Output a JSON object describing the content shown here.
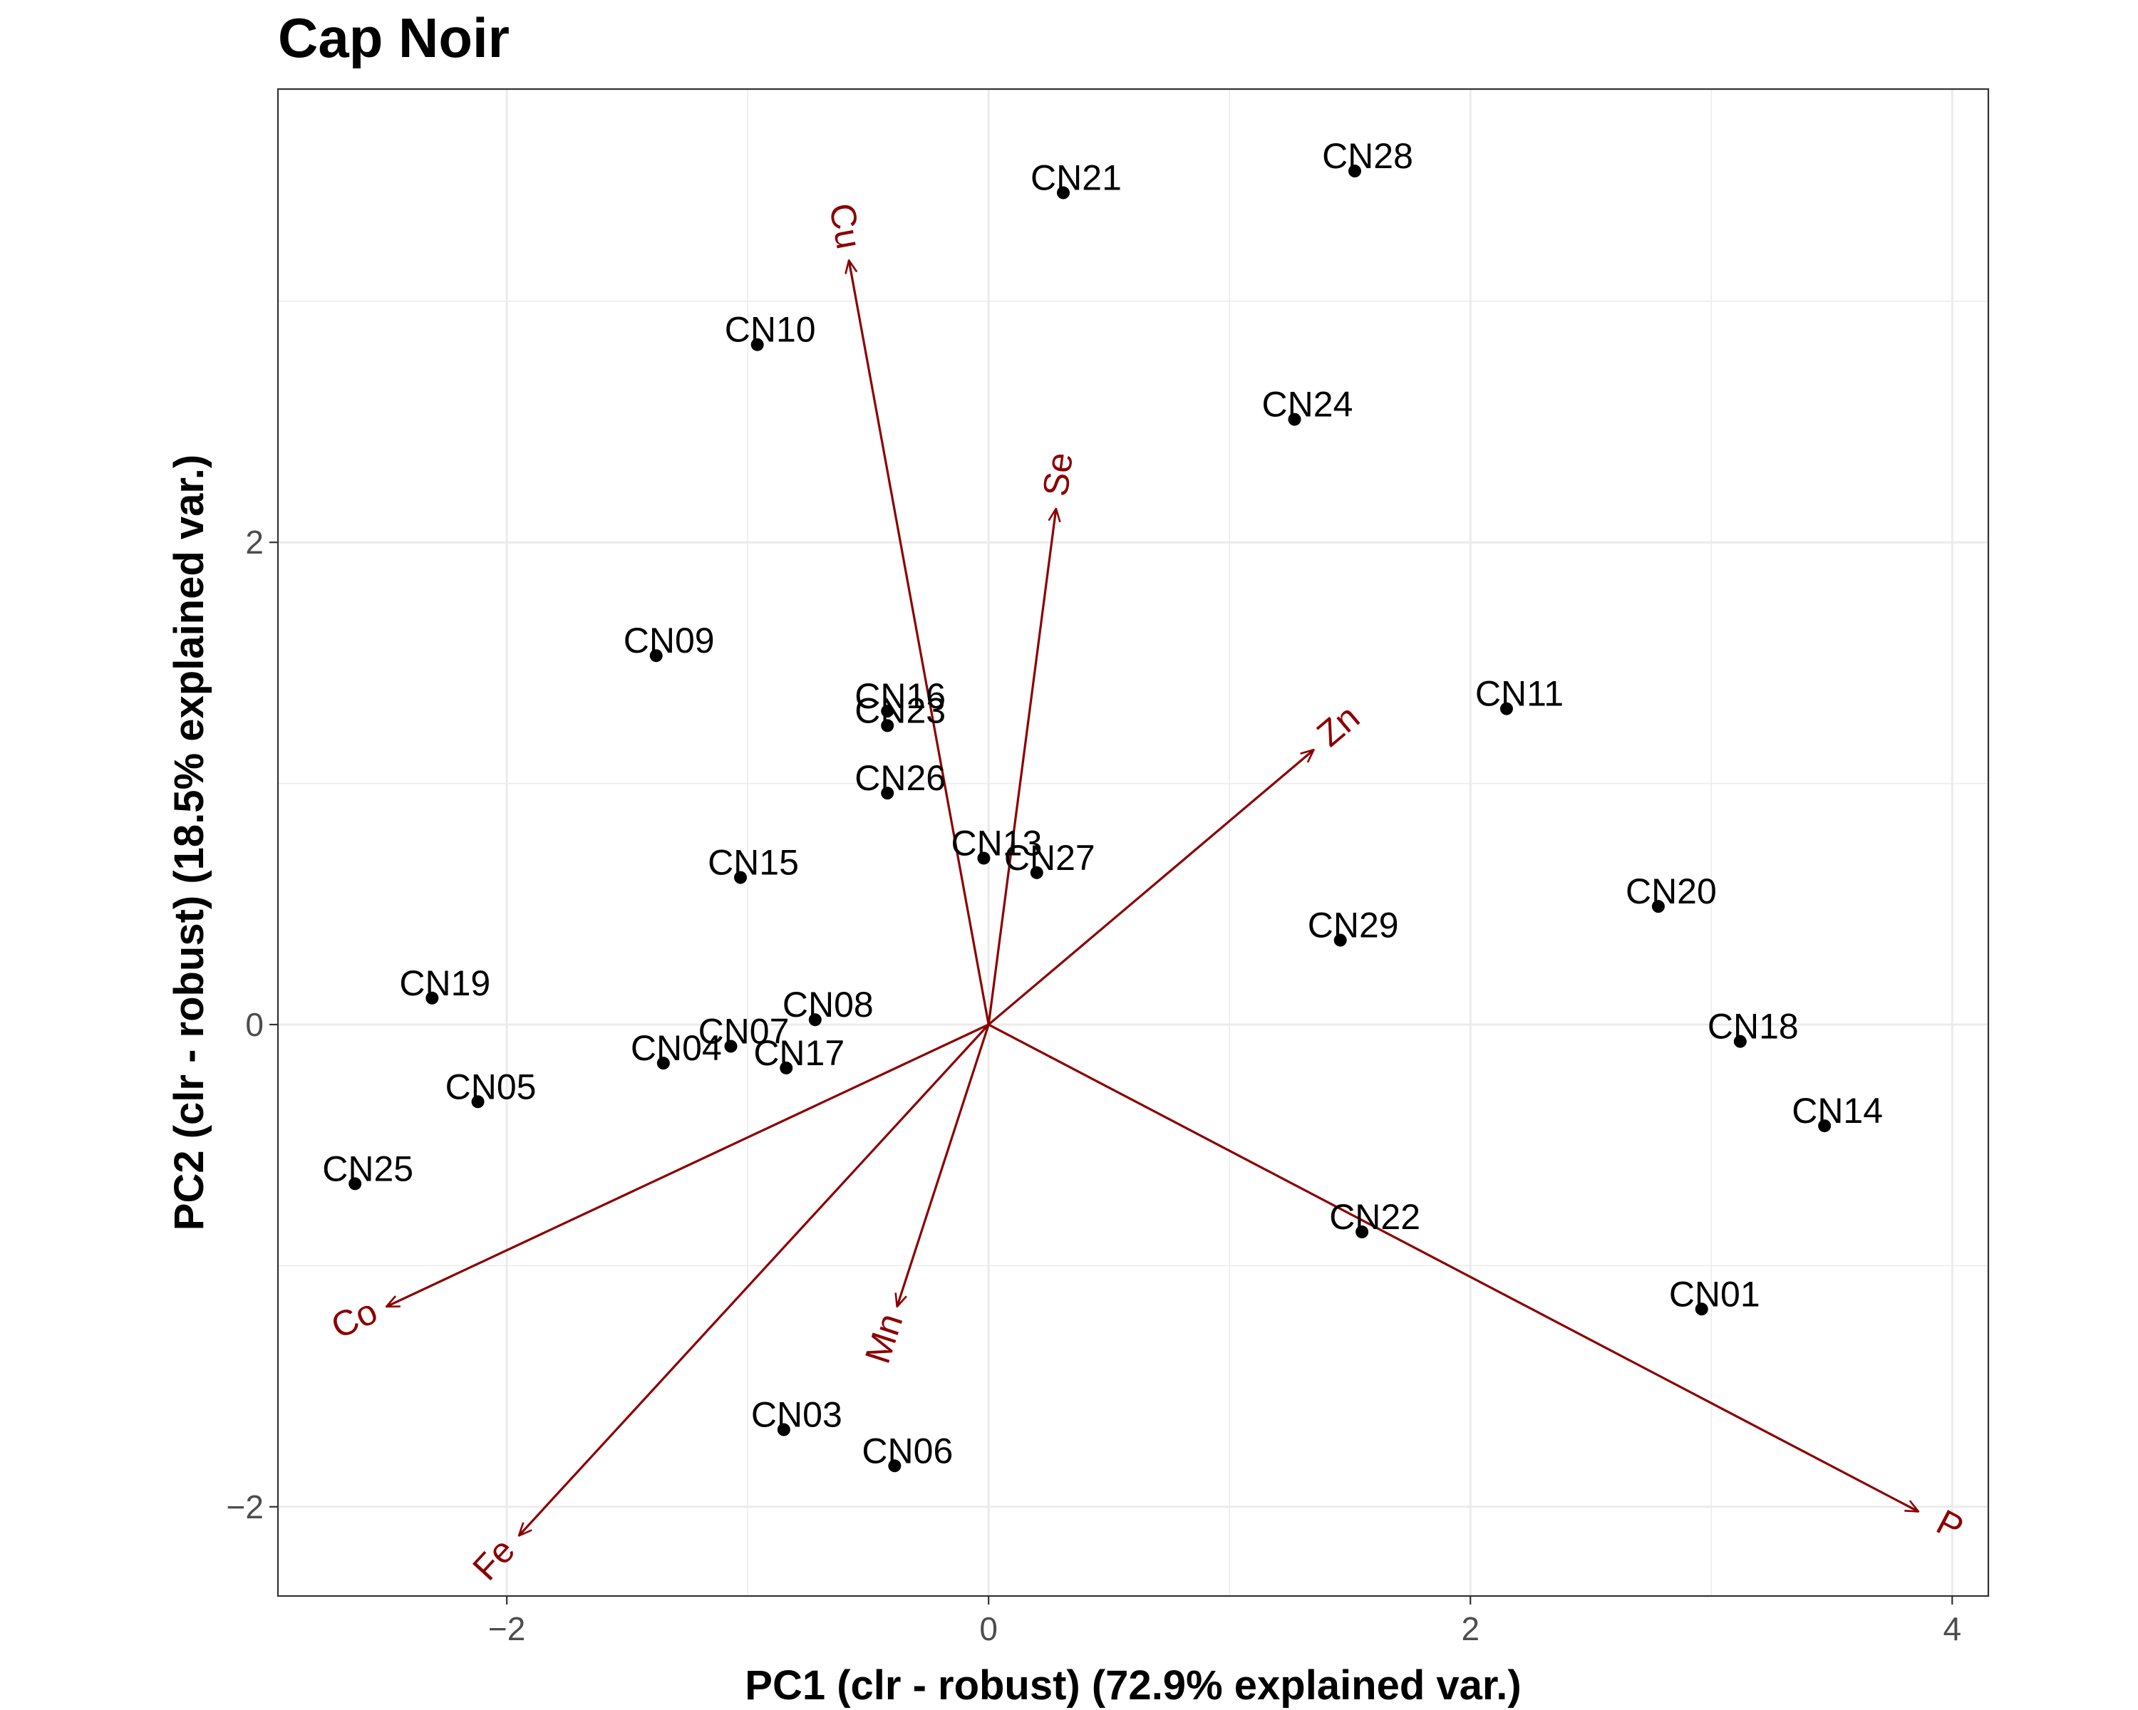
{
  "chart_data": {
    "type": "scatter",
    "title": "Cap Noir",
    "xlabel": "PC1 (clr - robust) (72.9% explained var.)",
    "ylabel": "PC2 (clr - robust) (18.5% explained var.)",
    "xlim": [
      -2.95,
      4.15
    ],
    "ylim": [
      -2.37,
      3.88
    ],
    "xticks": [
      -2,
      0,
      2,
      4
    ],
    "yticks": [
      -2,
      0,
      2
    ],
    "grid": true,
    "point_color": "#000000",
    "vector_color": "#8b0000",
    "points": [
      {
        "label": "CN01",
        "x": 2.96,
        "y": -1.18
      },
      {
        "label": "CN03",
        "x": -0.85,
        "y": -1.68
      },
      {
        "label": "CN04",
        "x": -1.35,
        "y": -0.16
      },
      {
        "label": "CN05",
        "x": -2.12,
        "y": -0.32
      },
      {
        "label": "CN06",
        "x": -0.39,
        "y": -1.83
      },
      {
        "label": "CN07",
        "x": -1.07,
        "y": -0.09
      },
      {
        "label": "CN08",
        "x": -0.72,
        "y": 0.02
      },
      {
        "label": "CN09",
        "x": -1.38,
        "y": 1.53
      },
      {
        "label": "CN10",
        "x": -0.96,
        "y": 2.82
      },
      {
        "label": "CN11",
        "x": 2.15,
        "y": 1.31
      },
      {
        "label": "CN13",
        "x": -0.02,
        "y": 0.69
      },
      {
        "label": "CN14",
        "x": 3.47,
        "y": -0.42
      },
      {
        "label": "CN15",
        "x": -1.03,
        "y": 0.61
      },
      {
        "label": "CN16",
        "x": -0.42,
        "y": 1.3
      },
      {
        "label": "CN17",
        "x": -0.84,
        "y": -0.18
      },
      {
        "label": "CN18",
        "x": 3.12,
        "y": -0.07
      },
      {
        "label": "CN19",
        "x": -2.31,
        "y": 0.11
      },
      {
        "label": "CN20",
        "x": 2.78,
        "y": 0.49
      },
      {
        "label": "CN21",
        "x": 0.31,
        "y": 3.45
      },
      {
        "label": "CN22",
        "x": 1.55,
        "y": -0.86
      },
      {
        "label": "CN23",
        "x": -0.42,
        "y": 1.24
      },
      {
        "label": "CN24",
        "x": 1.27,
        "y": 2.51
      },
      {
        "label": "CN25",
        "x": -2.63,
        "y": -0.66
      },
      {
        "label": "CN26",
        "x": -0.42,
        "y": 0.96
      },
      {
        "label": "CN27",
        "x": 0.2,
        "y": 0.63
      },
      {
        "label": "CN28",
        "x": 1.52,
        "y": 3.54
      },
      {
        "label": "CN29",
        "x": 1.46,
        "y": 0.35
      }
    ],
    "vectors": [
      {
        "label": "Cu",
        "x": -0.58,
        "y": 3.17
      },
      {
        "label": "Se",
        "x": 0.28,
        "y": 2.14
      },
      {
        "label": "Zn",
        "x": 1.35,
        "y": 1.14
      },
      {
        "label": "P",
        "x": 3.86,
        "y": -2.02
      },
      {
        "label": "Mn",
        "x": -0.38,
        "y": -1.17
      },
      {
        "label": "Co",
        "x": -2.5,
        "y": -1.17
      },
      {
        "label": "Fe",
        "x": -1.95,
        "y": -2.12
      }
    ]
  }
}
